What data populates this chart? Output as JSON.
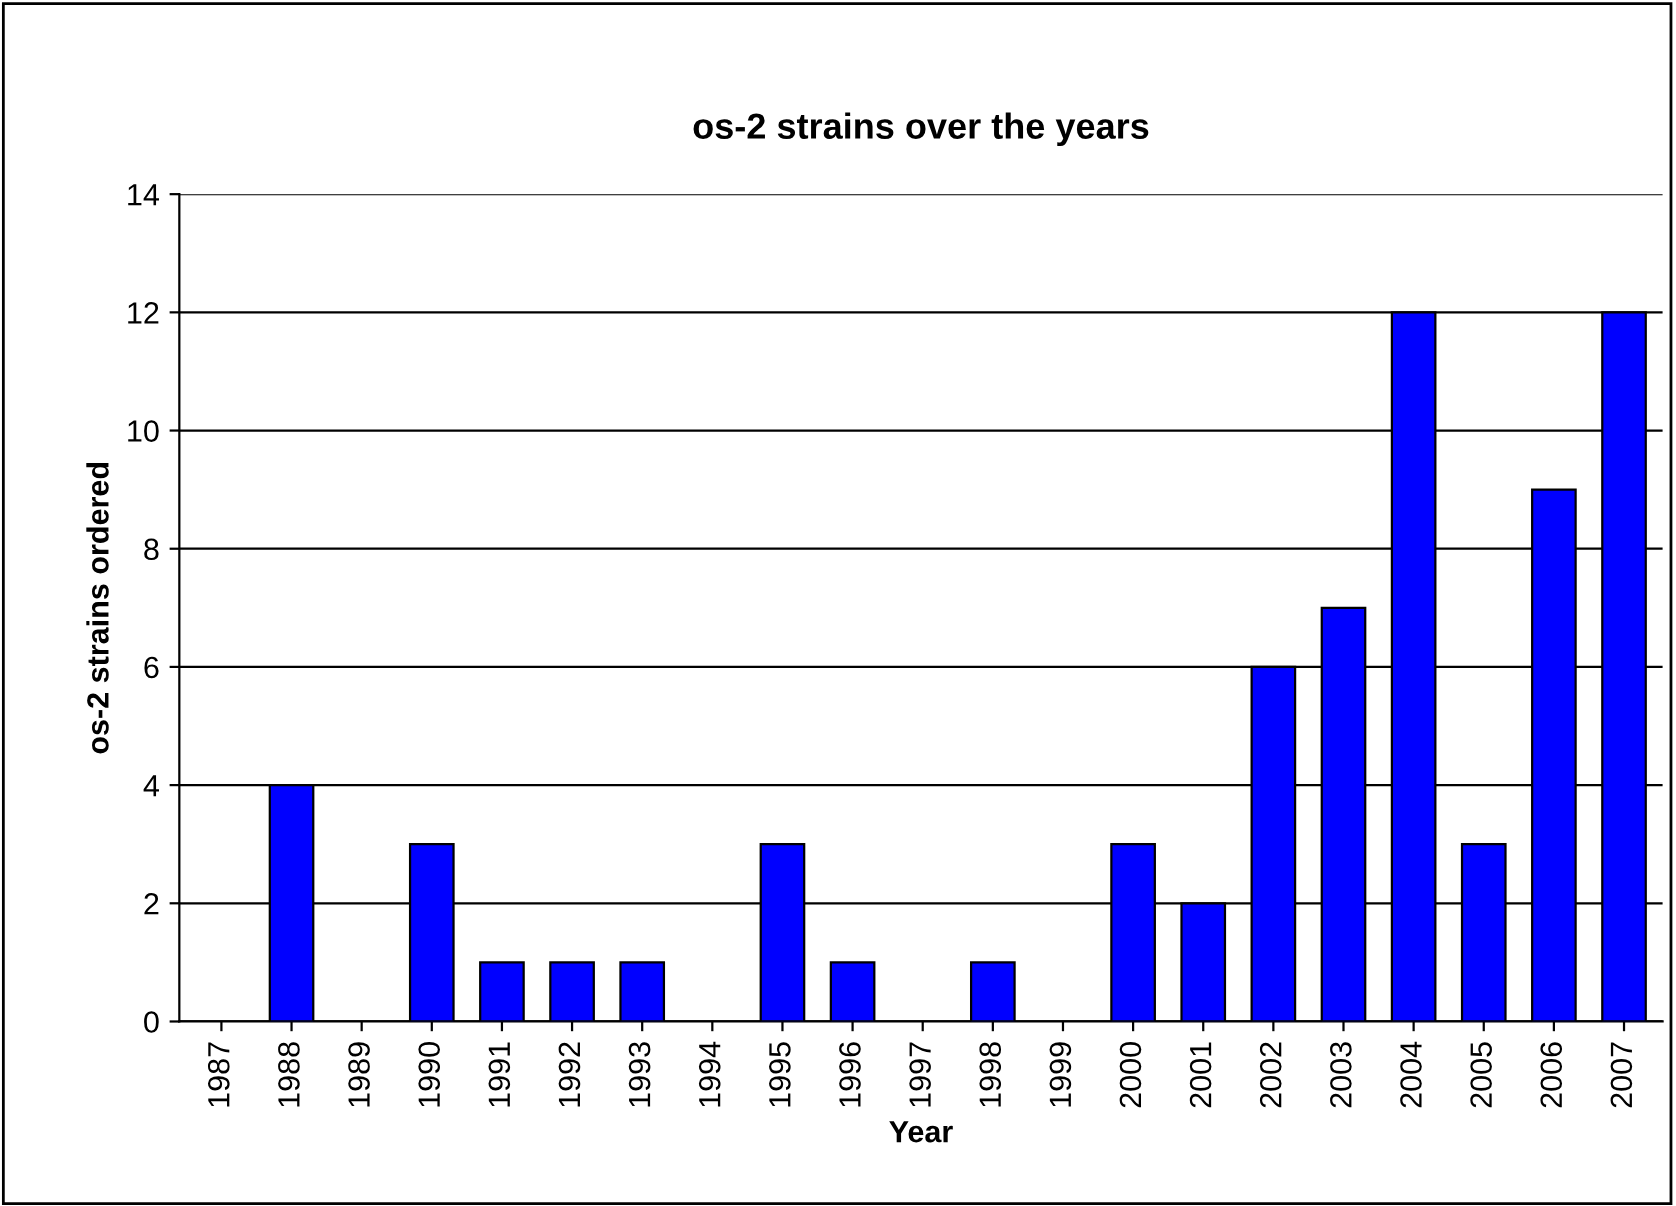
{
  "chart_data": {
    "type": "bar",
    "title": "os-2 strains over the years",
    "xlabel": "Year",
    "ylabel": "os-2 strains ordered",
    "categories": [
      "1987",
      "1988",
      "1989",
      "1990",
      "1991",
      "1992",
      "1993",
      "1994",
      "1995",
      "1996",
      "1997",
      "1998",
      "1999",
      "2000",
      "2001",
      "2002",
      "2003",
      "2004",
      "2005",
      "2006",
      "2007"
    ],
    "values": [
      0,
      4,
      0,
      3,
      1,
      1,
      1,
      0,
      3,
      1,
      0,
      1,
      0,
      3,
      2,
      6,
      7,
      12,
      3,
      9,
      12
    ],
    "color": "#0000ff",
    "ylim": [
      0,
      14
    ],
    "yticks": [
      0,
      2,
      4,
      6,
      8,
      10,
      12,
      14
    ],
    "grid": "y",
    "legend": false
  }
}
